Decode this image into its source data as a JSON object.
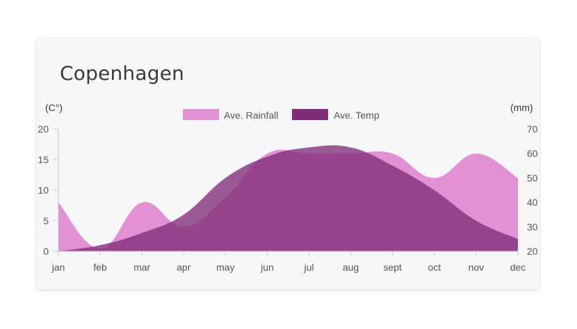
{
  "card": {
    "title": "Copenhagen"
  },
  "chart_data": {
    "type": "area",
    "title": "Copenhagen",
    "categories": [
      "jan",
      "feb",
      "mar",
      "apr",
      "may",
      "jun",
      "jul",
      "aug",
      "sept",
      "oct",
      "nov",
      "dec"
    ],
    "y_left": {
      "unit_label": "(C°)",
      "ticks": [
        0,
        5,
        10,
        15,
        20
      ],
      "range": [
        0,
        20
      ]
    },
    "y_right": {
      "unit_label": "(mm)",
      "ticks": [
        "20",
        "30",
        "40",
        "50",
        "60",
        "70"
      ],
      "range": [
        20,
        70
      ]
    },
    "legend_position": "top-center",
    "grid": false,
    "series": [
      {
        "name": "Ave. Rainfall",
        "axis": "right",
        "color": "#e291d4",
        "values": [
          40,
          21,
          40,
          30,
          42,
          60,
          60,
          60,
          60,
          50,
          60,
          50
        ]
      },
      {
        "name": "Ave. Temp",
        "axis": "left",
        "color": "#7f2d78",
        "values": [
          0,
          1,
          3,
          6,
          12,
          15.5,
          17,
          17,
          14,
          10,
          5,
          2
        ]
      }
    ]
  }
}
